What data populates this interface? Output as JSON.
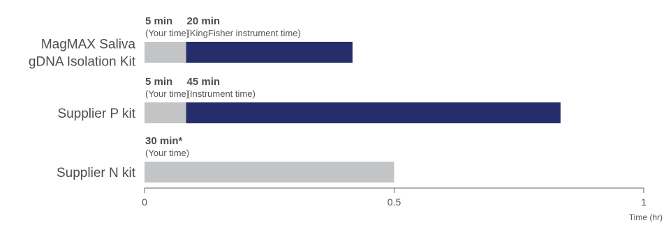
{
  "chart_data": {
    "type": "bar",
    "stacked": true,
    "orientation": "horizontal",
    "xlabel": "Time (hr)",
    "xlim": [
      0,
      1
    ],
    "xticks": [
      {
        "value": 0,
        "label": "0"
      },
      {
        "value": 0.5,
        "label": "0.5"
      },
      {
        "value": 1,
        "label": "1"
      }
    ],
    "colors": {
      "your_time": "#c3c4c6",
      "instrument_time": "#252e6b"
    },
    "categories": [
      {
        "lines": [
          "MagMAX Saliva",
          "gDNA Isolation Kit"
        ],
        "segments": [
          {
            "kind": "your_time",
            "value": 0.0833,
            "label": "5 min",
            "sublabel": "(Your time)"
          },
          {
            "kind": "instrument_time",
            "value": 0.3333,
            "label": "20 min",
            "sublabel": "(KingFisher instrument time)"
          }
        ]
      },
      {
        "lines": [
          "Supplier P kit"
        ],
        "segments": [
          {
            "kind": "your_time",
            "value": 0.0833,
            "label": "5 min",
            "sublabel": "(Your time)"
          },
          {
            "kind": "instrument_time",
            "value": 0.75,
            "label": "45 min",
            "sublabel": "(Instrument time)"
          }
        ]
      },
      {
        "lines": [
          "Supplier N kit"
        ],
        "segments": [
          {
            "kind": "your_time",
            "value": 0.5,
            "label": "30 min*",
            "sublabel": "(Your time)"
          }
        ]
      }
    ]
  }
}
